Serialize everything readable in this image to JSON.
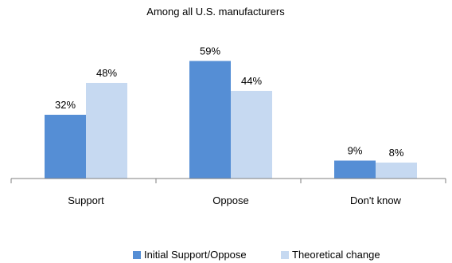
{
  "chart_data": {
    "type": "bar",
    "title": "Among all U.S. manufacturers",
    "categories": [
      "Support",
      "Oppose",
      "Don't know"
    ],
    "series": [
      {
        "name": "Initial Support/Oppose",
        "values": [
          32,
          59,
          9
        ],
        "labels": [
          "32%",
          "59%",
          "9%"
        ],
        "color": "#558ed5"
      },
      {
        "name": "Theoretical change",
        "values": [
          48,
          44,
          8
        ],
        "labels": [
          "48%",
          "44%",
          "8%"
        ],
        "color": "#c6d9f1"
      }
    ],
    "ylim": [
      0,
      70
    ],
    "grid": false,
    "legend": "bottom"
  }
}
